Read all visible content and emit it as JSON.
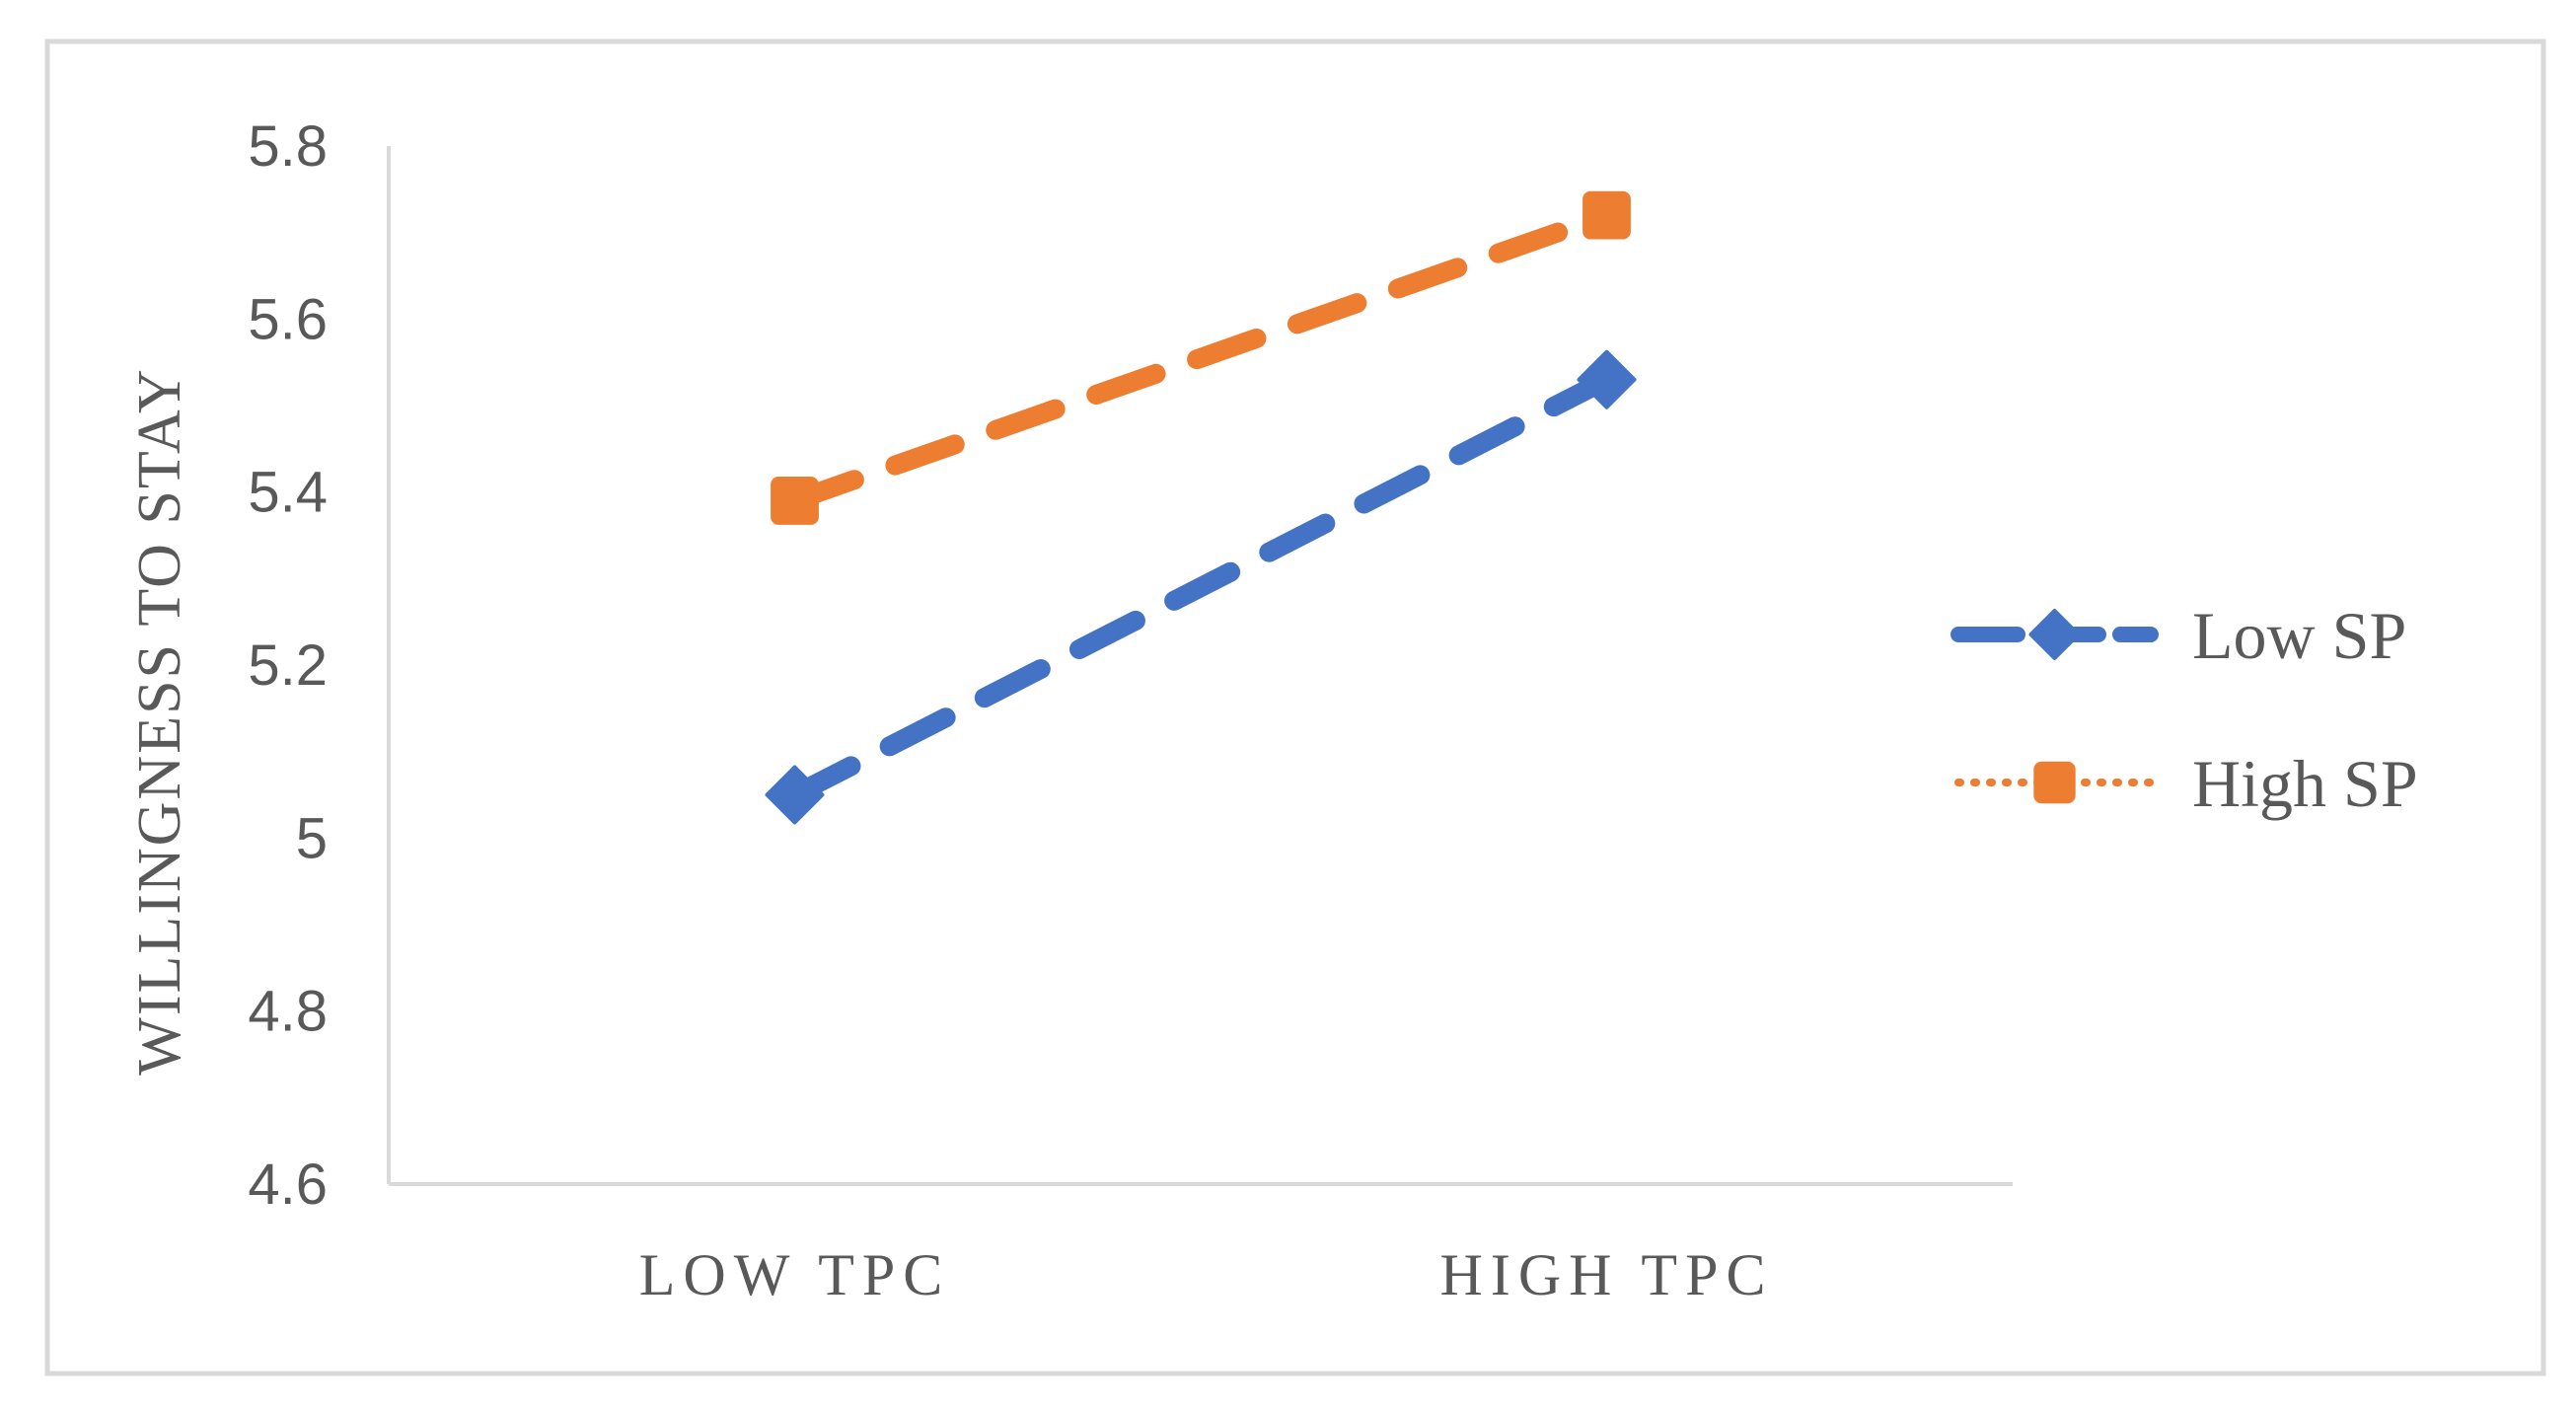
{
  "chart_data": {
    "type": "line",
    "title": "",
    "xlabel": "",
    "ylabel": "WILLINGNESS TO STAY",
    "categories": [
      "LOW TPC",
      "HIGH TPC"
    ],
    "ylim": [
      4.6,
      5.8
    ],
    "yticks": [
      4.6,
      4.8,
      5,
      5.2,
      5.4,
      5.6,
      5.8
    ],
    "ytick_labels": [
      "4.6",
      "4.8",
      "5",
      "5.2",
      "5.4",
      "5.6",
      "5.8"
    ],
    "grid": false,
    "legend_position": "right",
    "series": [
      {
        "name": "Low SP",
        "values": [
          5.05,
          5.53
        ],
        "color": "#4472C4",
        "marker": "diamond",
        "line_style": "dashed"
      },
      {
        "name": "High SP",
        "values": [
          5.39,
          5.72
        ],
        "color": "#ED7D31",
        "marker": "square",
        "line_style": "dashed",
        "legend_line_style": "dotted"
      }
    ]
  }
}
